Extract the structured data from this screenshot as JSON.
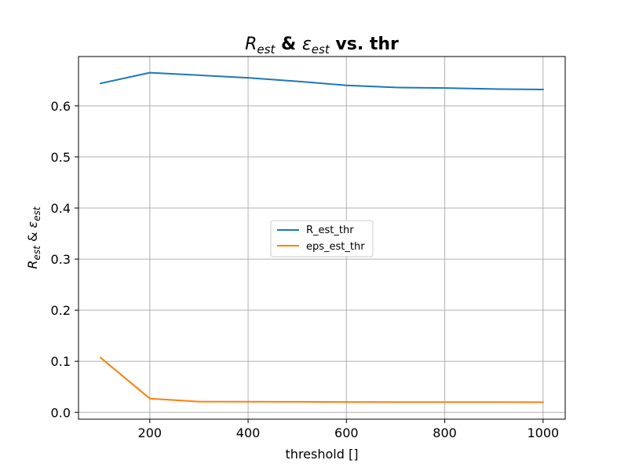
{
  "chart_data": {
    "type": "line",
    "title": {
      "R": "R",
      "R_sub": "est",
      "amp": "&",
      "eps": "ε",
      "eps_sub": "est",
      "suffix": "vs. thr"
    },
    "xlabel": "threshold []",
    "ylabel": {
      "R": "R",
      "R_sub": "est",
      "amp": "&",
      "eps": "ε",
      "eps_sub": "est"
    },
    "xlim": [
      55,
      1045
    ],
    "ylim": [
      -0.0134,
      0.6966
    ],
    "xticks": [
      200,
      400,
      600,
      800,
      1000
    ],
    "xtick_labels": [
      "200",
      "400",
      "600",
      "800",
      "1000"
    ],
    "yticks": [
      0.0,
      0.1,
      0.2,
      0.3,
      0.4,
      0.5,
      0.6
    ],
    "ytick_labels": [
      "0.0",
      "0.1",
      "0.2",
      "0.3",
      "0.4",
      "0.5",
      "0.6"
    ],
    "grid": true,
    "legend_position": "center",
    "x": [
      100,
      200,
      300,
      400,
      500,
      600,
      700,
      800,
      900,
      1000
    ],
    "series": [
      {
        "name": "R_est_thr",
        "color": "#1f77b4",
        "values": [
          0.644,
          0.665,
          0.66,
          0.655,
          0.648,
          0.64,
          0.636,
          0.635,
          0.633,
          0.632
        ]
      },
      {
        "name": "eps_est_thr",
        "color": "#ff7f0e",
        "values": [
          0.107,
          0.027,
          0.021,
          0.0208,
          0.0205,
          0.0202,
          0.0201,
          0.02,
          0.0199,
          0.0198
        ]
      }
    ]
  }
}
